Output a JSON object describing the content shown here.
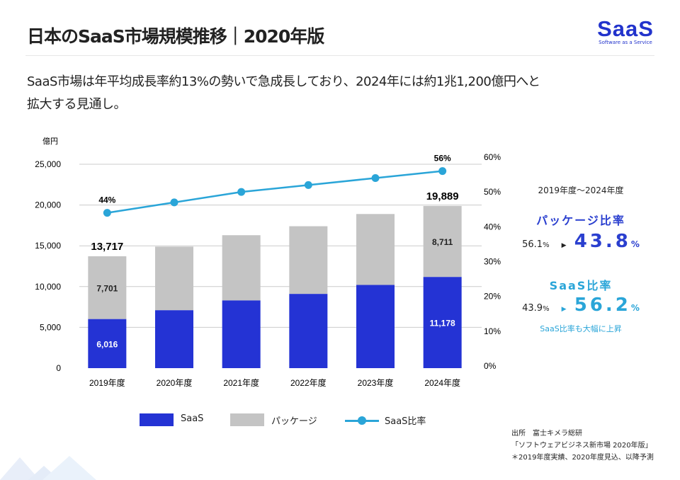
{
  "header": {
    "title": "日本のSaaS市場規模推移｜2020年版",
    "logo_main": "SaaS",
    "logo_sub": "Software as a Service"
  },
  "lead": {
    "line1": "SaaS市場は年平均成長率約13%の勢いで急成長しており、2024年には約1兆1,200億円へと",
    "line2": "拡大する見通し。"
  },
  "colors": {
    "saas": "#2433d4",
    "package": "#c4c4c4",
    "ratio_line": "#2aa5d8",
    "package_accent": "#2a3fcf",
    "saas_accent": "#2aa5d8"
  },
  "chart_data": {
    "type": "bar",
    "stacked": true,
    "y_unit_label": "億円",
    "categories": [
      "2019年度",
      "2020年度",
      "2021年度",
      "2022年度",
      "2023年度",
      "2024年度"
    ],
    "ylim": [
      0,
      25000
    ],
    "yticks": [
      "0",
      "5,000",
      "10,000",
      "15,000",
      "20,000",
      "25,000"
    ],
    "y2lim": [
      0,
      60
    ],
    "y2ticks": [
      "0%",
      "10%",
      "20%",
      "30%",
      "40%",
      "50%",
      "60%"
    ],
    "grid": true,
    "series": [
      {
        "name": "SaaS",
        "values": [
          6016,
          7100,
          8300,
          9100,
          10200,
          11178
        ],
        "labels": [
          "6,016",
          "",
          "",
          "",
          "",
          "11,178"
        ]
      },
      {
        "name": "パッケージ",
        "values": [
          7701,
          7800,
          8000,
          8300,
          8700,
          8711
        ],
        "labels": [
          "7,701",
          "",
          "",
          "",
          "",
          "8,711"
        ]
      },
      {
        "name": "SaaS比率",
        "type": "line",
        "axis": "right",
        "values": [
          44,
          47,
          50,
          52,
          54,
          56
        ],
        "labels": [
          "44%",
          "",
          "",
          "",
          "",
          "56%"
        ]
      }
    ],
    "total_labels": [
      "13,717",
      "",
      "",
      "",
      "",
      "19,889"
    ],
    "legend_placement": "bottom"
  },
  "side": {
    "period": "2019年度〜2024年度",
    "package_title": "パッケージ比率",
    "package_from": "56.1",
    "package_to": "43.8",
    "pct": "%",
    "saas_title": "SaaS比率",
    "saas_from": "43.9",
    "saas_to": "56.2",
    "note": "SaaS比率も大幅に上昇"
  },
  "source": {
    "line1": "出所　富士キメラ総研",
    "line2": "「ソフトウェアビジネス新市場 2020年版」",
    "line3": "＊2019年度実績、2020年度見込、以降予測"
  }
}
